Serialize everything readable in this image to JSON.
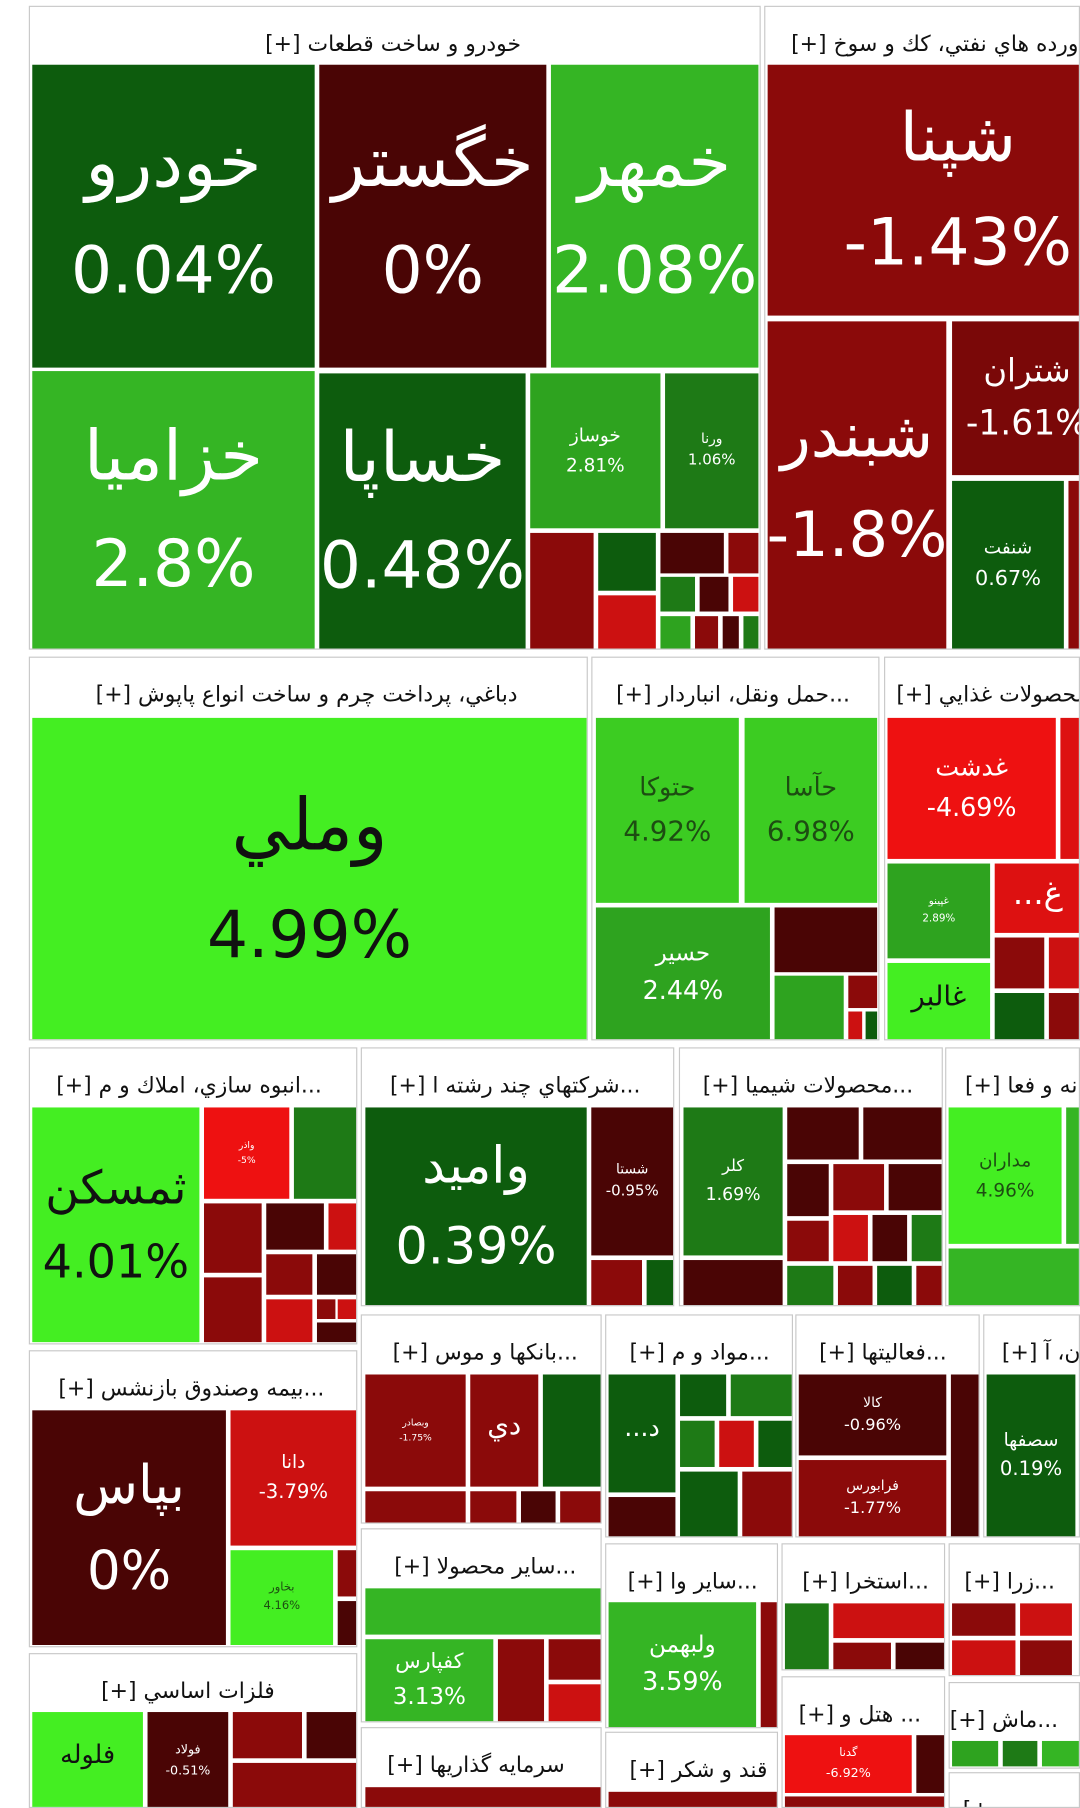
{
  "sectors": [
    {
      "title": "خودرو و ساخت قطعات [+]",
      "tiles": [
        {
          "name": "خودرو",
          "change": "0.04%"
        },
        {
          "name": "خگستر",
          "change": "0%"
        },
        {
          "name": "خمهر",
          "change": "2.08%"
        },
        {
          "name": "خزاميا",
          "change": "2.8%"
        },
        {
          "name": "خساپا",
          "change": "0.48%"
        },
        {
          "name": "خوساز",
          "change": "2.81%"
        },
        {
          "name": "ورنا",
          "change": "1.06%"
        }
      ]
    },
    {
      "title": "ورده هاي نفتي، كك و سوخ [+]",
      "tiles": [
        {
          "name": "شپنا",
          "change": "-1.43%"
        },
        {
          "name": "شبندر",
          "change": "-1.8%"
        },
        {
          "name": "شتران",
          "change": "-1.61%"
        },
        {
          "name": "شنفت",
          "change": "0.67%"
        }
      ]
    },
    {
      "title": "دباغي، پرداخت چرم و ساخت انواع پاپوش [+]",
      "tiles": [
        {
          "name": "وملي",
          "change": "4.99%"
        }
      ]
    },
    {
      "title": "...حمل ونقل، انباردار [+]",
      "tiles": [
        {
          "name": "حتوكا",
          "change": "4.92%"
        },
        {
          "name": "حآسا",
          "change": "6.98%"
        },
        {
          "name": "حسير",
          "change": "2.44%"
        }
      ]
    },
    {
      "title": "محصولات غذايي [+]",
      "tiles": [
        {
          "name": "غدشت",
          "change": "-4.69%"
        },
        {
          "name": "غپينو",
          "change": "2.89%"
        },
        {
          "name": "غ..."
        },
        {
          "name": "غالبر"
        }
      ]
    },
    {
      "title": "...انبوه سازي، املاك و م [+]",
      "tiles": [
        {
          "name": "ثمسكن",
          "change": "4.01%"
        },
        {
          "name": "واذر",
          "change": "-5%"
        }
      ]
    },
    {
      "title": "...شركتهاي چند رشته ا [+]",
      "tiles": [
        {
          "name": "واميد",
          "change": "0.39%"
        },
        {
          "name": "شستا",
          "change": "-0.95%"
        }
      ]
    },
    {
      "title": "...محصولات شيميا [+]",
      "tiles": [
        {
          "name": "كلر",
          "change": "1.69%"
        }
      ]
    },
    {
      "title": "نه و فعا [+]",
      "tiles": [
        {
          "name": "مداران",
          "change": "4.96%"
        }
      ]
    },
    {
      "title": "...بيمه وصندوق بازنشس [+]",
      "tiles": [
        {
          "name": "بپاس",
          "change": "0%"
        },
        {
          "name": "دانا",
          "change": "-3.79%"
        },
        {
          "name": "بخاور",
          "change": "4.16%"
        }
      ]
    },
    {
      "title": "...بانكها و موس [+]",
      "tiles": [
        {
          "name": "وبصادر",
          "change": "-1.75%"
        },
        {
          "name": "دي"
        }
      ]
    },
    {
      "title": "...مواد و م [+]",
      "tiles": [
        {
          "name": "د..."
        }
      ]
    },
    {
      "title": "...فعاليتها [+]",
      "tiles": [
        {
          "name": "كالا",
          "change": "-0.96%"
        },
        {
          "name": "فرابورس",
          "change": "-1.77%"
        }
      ]
    },
    {
      "title": "ان، آ [+]",
      "tiles": [
        {
          "name": "سصفها",
          "change": "0.19%"
        }
      ]
    },
    {
      "title": "...ساير محصولا [+]",
      "tiles": [
        {
          "name": "كفپارس",
          "change": "3.13%"
        }
      ]
    },
    {
      "title": "...ساير وا [+]",
      "tiles": [
        {
          "name": "ولبهمن",
          "change": "3.59%"
        }
      ]
    },
    {
      "title": "...استخرا [+]",
      "tiles": []
    },
    {
      "title": "...زرا [+]",
      "tiles": []
    },
    {
      "title": "فلزات اساسي [+]",
      "tiles": [
        {
          "name": "فلوله"
        },
        {
          "name": "فولاد",
          "change": "-0.51%"
        }
      ]
    },
    {
      "title": "سرمايه گذاريها [+]",
      "tiles": []
    },
    {
      "title": "قند و شكر [+]",
      "tiles": []
    },
    {
      "title": "... هتل و [+]",
      "tiles": [
        {
          "name": "گدنا",
          "change": "-6.92%"
        }
      ]
    },
    {
      "title": "...ماش [+]",
      "tiles": []
    },
    {
      "title": "[+...",
      "tiles": []
    }
  ]
}
